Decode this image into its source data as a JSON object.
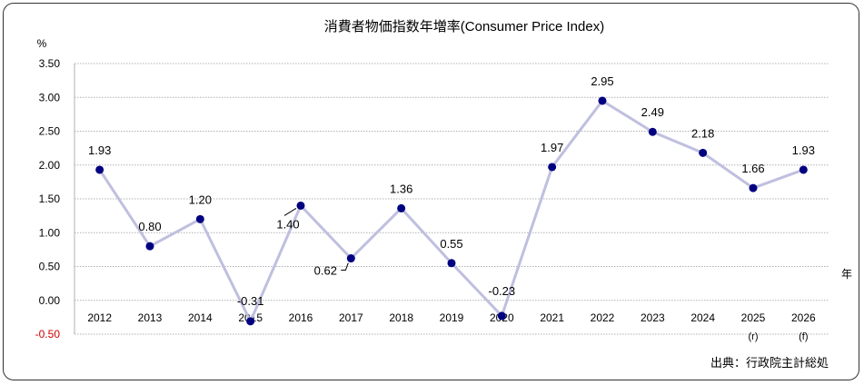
{
  "chart_data": {
    "type": "line",
    "title": "消費者物価指数年増率(Consumer Price Index)",
    "ylabel": "%",
    "xlabel": "年",
    "ylim": [
      -0.5,
      3.5
    ],
    "yticks": [
      "3.50",
      "3.00",
      "2.50",
      "2.00",
      "1.50",
      "1.00",
      "0.50",
      "0.00",
      "-0.50"
    ],
    "yticks_values": [
      3.5,
      3.0,
      2.5,
      2.0,
      1.5,
      1.0,
      0.5,
      0.0,
      -0.5
    ],
    "grid": true,
    "categories": [
      "2012",
      "2013",
      "2014",
      "2015",
      "2016",
      "2017",
      "2018",
      "2019",
      "2020",
      "2021",
      "2022",
      "2023",
      "2024",
      "2025",
      "2026"
    ],
    "category_notes": [
      "",
      "",
      "",
      "",
      "",
      "",
      "",
      "",
      "",
      "",
      "",
      "",
      "",
      "(r)",
      "(f)"
    ],
    "series": [
      {
        "values": [
          1.93,
          0.8,
          1.2,
          -0.31,
          1.4,
          0.62,
          1.36,
          0.55,
          -0.23,
          1.97,
          2.95,
          2.49,
          2.18,
          1.66,
          1.93
        ],
        "labels": [
          "1.93",
          "0.80",
          "1.20",
          "-0.31",
          "1.40",
          "0.62",
          "1.36",
          "0.55",
          "-0.23",
          "1.97",
          "2.95",
          "2.49",
          "2.18",
          "1.66",
          "1.93"
        ]
      }
    ],
    "line_color": "#bfbfdf",
    "marker_color": "#000080",
    "negative_tick_color": "#cc0000"
  },
  "source": "出典：行政院主計総処"
}
